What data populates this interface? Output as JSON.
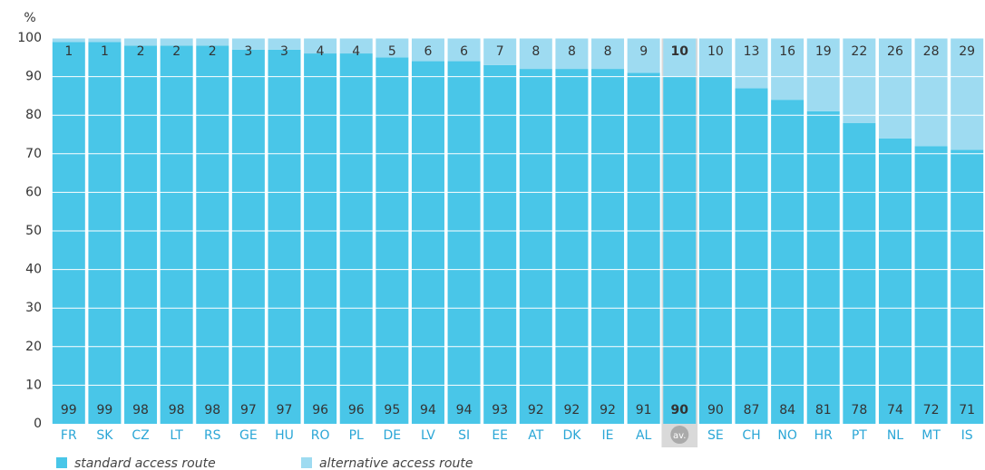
{
  "chart_data": {
    "type": "stacked_bar",
    "y_axis_label": "%",
    "categories": [
      "FR",
      "SK",
      "CZ",
      "LT",
      "RS",
      "GE",
      "HU",
      "RO",
      "PL",
      "DE",
      "LV",
      "SI",
      "EE",
      "AT",
      "DK",
      "IE",
      "AL",
      "av.",
      "SE",
      "CH",
      "NO",
      "HR",
      "PT",
      "NL",
      "MT",
      "IS"
    ],
    "series": [
      {
        "name": "standard access route",
        "color": "#49c6e8",
        "values": [
          99,
          99,
          98,
          98,
          98,
          97,
          97,
          96,
          96,
          95,
          94,
          94,
          93,
          92,
          92,
          92,
          91,
          90,
          90,
          87,
          84,
          81,
          78,
          74,
          72,
          71
        ]
      },
      {
        "name": "alternative access route",
        "color": "#9edbf1",
        "values": [
          1,
          1,
          2,
          2,
          2,
          3,
          3,
          4,
          4,
          5,
          6,
          6,
          7,
          8,
          8,
          8,
          9,
          10,
          10,
          13,
          16,
          19,
          22,
          26,
          28,
          29
        ]
      }
    ],
    "highlight": "av.",
    "ylim": [
      0,
      100
    ],
    "yticks": [
      0,
      10,
      20,
      30,
      40,
      50,
      60,
      70,
      80,
      90,
      100
    ],
    "grid": true
  }
}
